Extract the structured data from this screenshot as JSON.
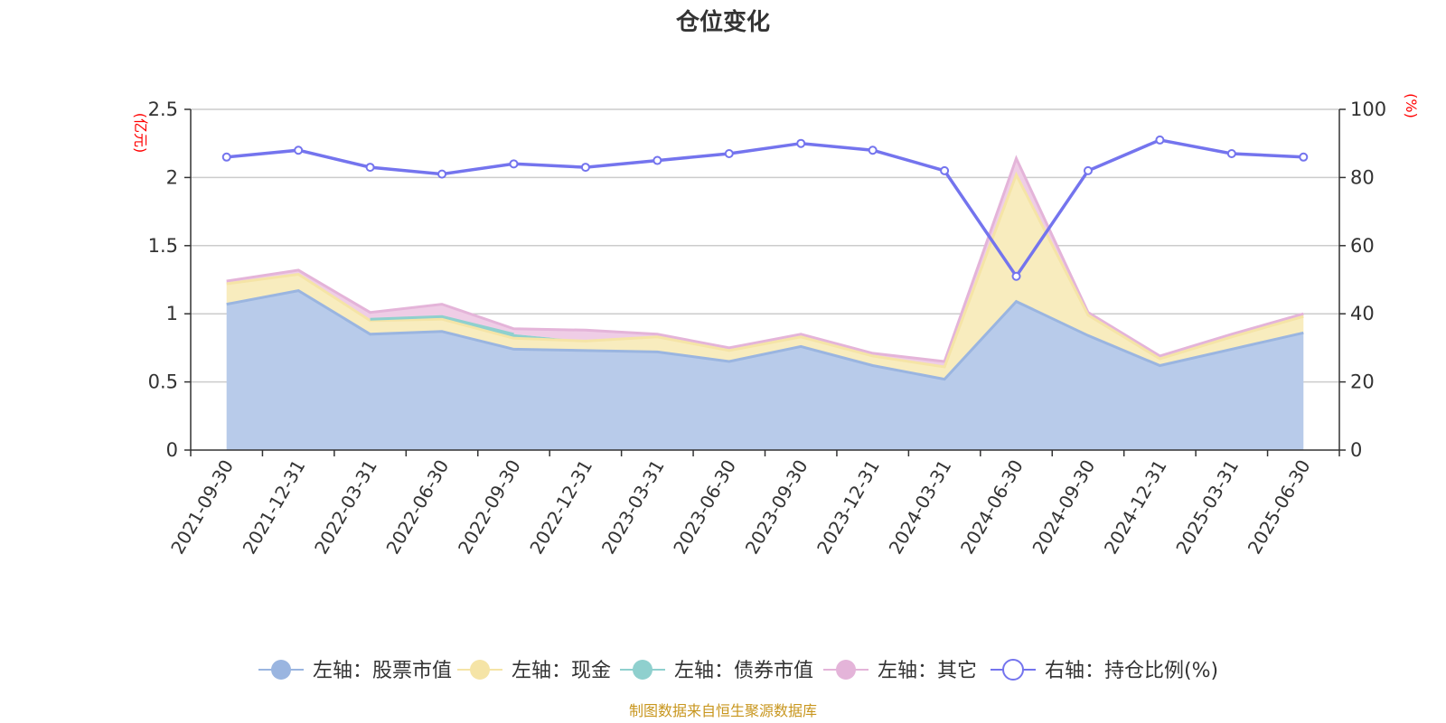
{
  "title": "仓位变化",
  "left_unit": "(亿元)",
  "right_unit": "(%)",
  "source": "制图数据来自恒生聚源数据库",
  "colors": {
    "stock": "#9ab5e0",
    "stock_fill": "#b8cbea",
    "cash": "#f5e4a6",
    "cash_fill": "#f8ecbe",
    "bond": "#8fd0ce",
    "other": "#e4b4d9",
    "other_fill": "#efcde6",
    "ratio": "#7474ee"
  },
  "legend": [
    {
      "label": "左轴：股票市值",
      "key": "stock",
      "hollow": false
    },
    {
      "label": "左轴：现金",
      "key": "cash",
      "hollow": false
    },
    {
      "label": "左轴：债券市值",
      "key": "bond",
      "hollow": false
    },
    {
      "label": "左轴：其它",
      "key": "other",
      "hollow": false
    },
    {
      "label": "右轴：持仓比例(%)",
      "key": "ratio",
      "hollow": true
    }
  ],
  "chart_data": {
    "type": "area",
    "categories": [
      "2021-09-30",
      "2021-12-31",
      "2022-03-31",
      "2022-06-30",
      "2022-09-30",
      "2022-12-31",
      "2023-03-31",
      "2023-06-30",
      "2023-09-30",
      "2023-12-31",
      "2024-03-31",
      "2024-06-30",
      "2024-09-30",
      "2024-12-31",
      "2025-03-31",
      "2025-06-30"
    ],
    "left_axis": {
      "min": 0,
      "max": 2.5,
      "ticks": [
        "0",
        "0.5",
        "1",
        "1.5",
        "2",
        "2.5"
      ]
    },
    "right_axis": {
      "min": 0,
      "max": 100,
      "ticks": [
        "0",
        "20",
        "40",
        "60",
        "80",
        "100"
      ]
    },
    "series": [
      {
        "name": "左轴：股票市值",
        "axis": "left",
        "stack": true,
        "values": [
          1.07,
          1.17,
          0.85,
          0.87,
          0.74,
          0.73,
          0.72,
          0.65,
          0.76,
          0.62,
          0.52,
          1.09,
          0.84,
          0.62,
          0.74,
          0.86
        ]
      },
      {
        "name": "左轴：现金",
        "axis": "left",
        "stack": true,
        "values": [
          0.15,
          0.12,
          0.1,
          0.09,
          0.08,
          0.07,
          0.11,
          0.08,
          0.07,
          0.07,
          0.09,
          0.93,
          0.15,
          0.05,
          0.09,
          0.12
        ]
      },
      {
        "name": "左轴：债券市值",
        "axis": "left",
        "stack": true,
        "values": [
          null,
          null,
          0.01,
          0.02,
          0.03,
          null,
          null,
          null,
          null,
          null,
          null,
          null,
          null,
          null,
          null,
          null
        ]
      },
      {
        "name": "左轴：其它",
        "axis": "left",
        "stack": true,
        "values": [
          0.02,
          0.03,
          0.05,
          0.09,
          0.04,
          0.08,
          0.02,
          0.02,
          0.02,
          0.02,
          0.04,
          0.12,
          0.02,
          0.02,
          0.02,
          0.02
        ]
      },
      {
        "name": "右轴：持仓比例(%)",
        "axis": "right",
        "stack": false,
        "values": [
          86,
          88,
          83,
          81,
          84,
          83,
          85,
          87,
          90,
          88,
          82,
          51,
          82,
          91,
          87,
          86
        ]
      }
    ]
  }
}
